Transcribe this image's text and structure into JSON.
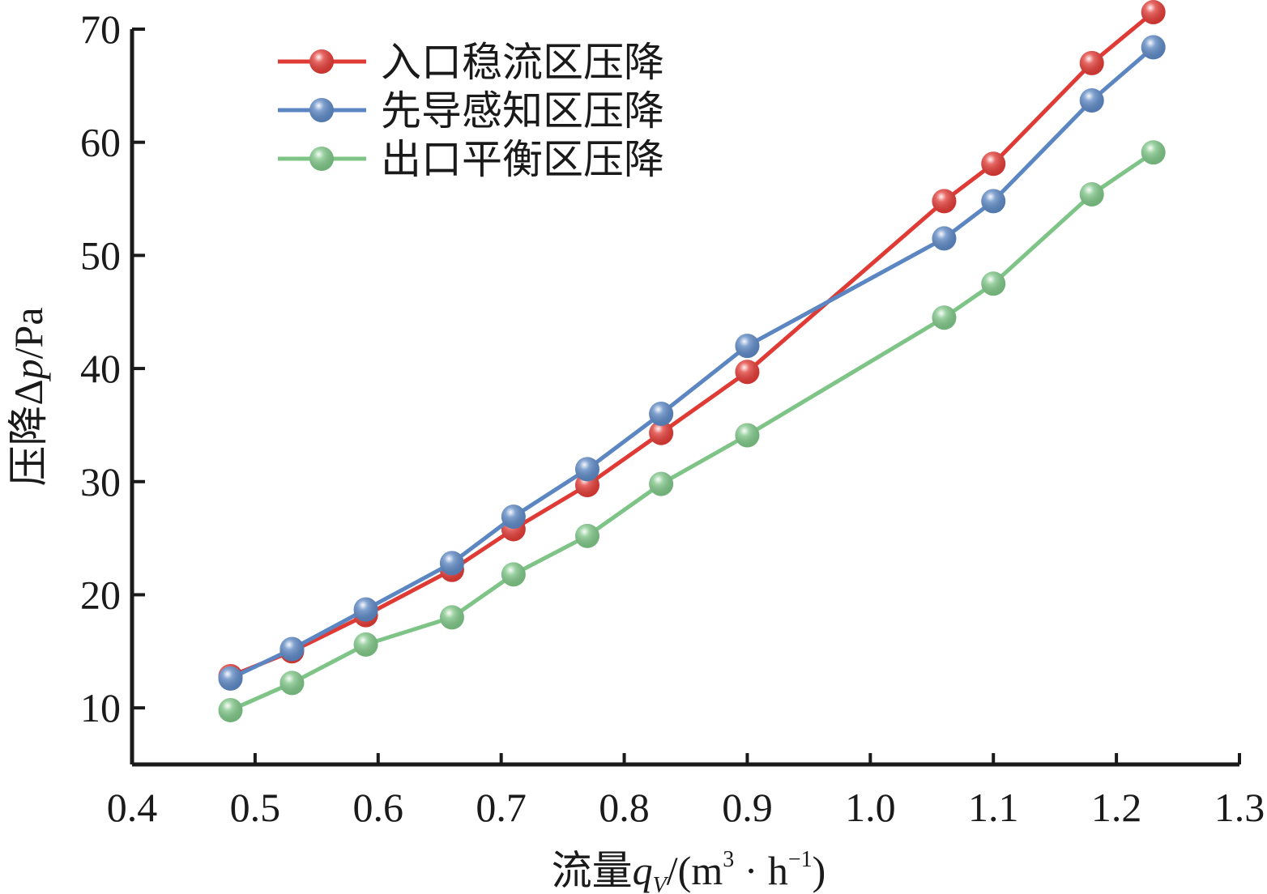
{
  "chart_data": {
    "type": "line",
    "xlabel": {
      "prefix": "流量",
      "var": "q",
      "sub": "V",
      "unit_open": "/(m",
      "sup1": "3",
      "mid": " · h",
      "sup2": "−1",
      "close": ")"
    },
    "ylabel": {
      "prefix": "压降Δ",
      "var": "p",
      "suffix": "/Pa"
    },
    "xlim": [
      0.4,
      1.3
    ],
    "ylim": [
      5,
      70
    ],
    "xticks": [
      "0.4",
      "0.5",
      "0.6",
      "0.7",
      "0.8",
      "0.9",
      "1.0",
      "1.1",
      "1.2",
      "1.3"
    ],
    "yticks": [
      "10",
      "20",
      "30",
      "40",
      "50",
      "60",
      "70"
    ],
    "grid": false,
    "legend_position": "top-left",
    "x": [
      0.48,
      0.53,
      0.59,
      0.66,
      0.71,
      0.77,
      0.83,
      0.9,
      1.06,
      1.1,
      1.18,
      1.23
    ],
    "series": [
      {
        "name": "入口稳流区压降",
        "color": "#e03a35",
        "values": [
          12.8,
          15.0,
          18.2,
          22.2,
          25.8,
          29.7,
          34.3,
          39.7,
          54.8,
          58.1,
          67.0,
          71.5
        ]
      },
      {
        "name": "先导感知区压降",
        "color": "#5b86c2",
        "values": [
          12.6,
          15.2,
          18.7,
          22.8,
          26.9,
          31.1,
          36.0,
          42.0,
          51.5,
          54.8,
          63.7,
          68.4
        ]
      },
      {
        "name": "出口平衡区压降",
        "color": "#7dc486",
        "values": [
          9.8,
          12.2,
          15.6,
          18.0,
          21.8,
          25.2,
          29.8,
          34.1,
          44.5,
          47.5,
          55.4,
          59.1
        ]
      }
    ]
  }
}
